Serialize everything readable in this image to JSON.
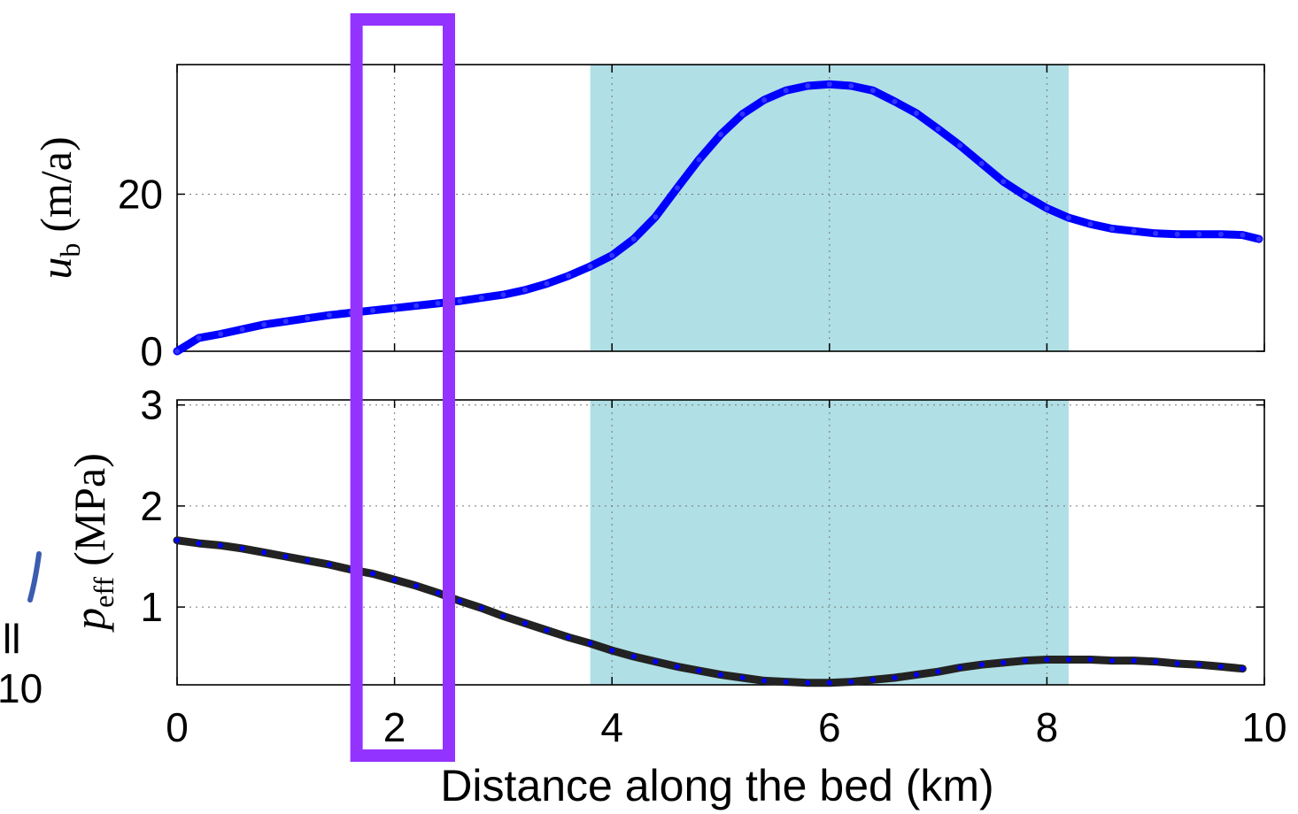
{
  "chart_data": [
    {
      "type": "line",
      "ylabel": {
        "symbol": "u",
        "subscript": "b",
        "unit": "(m/a)"
      },
      "xlim": [
        0,
        10
      ],
      "ylim": [
        0,
        36.5
      ],
      "yticks": [
        "0",
        "20"
      ],
      "yticks_values": [
        0,
        20
      ],
      "xticks_values": [
        0,
        2,
        4,
        6,
        8,
        10
      ],
      "grid": true,
      "shaded_region": {
        "x": [
          3.8,
          8.2
        ],
        "color": "#b0dfe5"
      },
      "series": [
        {
          "color": "#0000ff",
          "x": [
            0,
            0.2,
            0.4,
            0.6,
            0.8,
            1.0,
            1.2,
            1.4,
            1.6,
            1.8,
            2.0,
            2.2,
            2.4,
            2.6,
            2.8,
            3.0,
            3.2,
            3.4,
            3.6,
            3.8,
            4.0,
            4.2,
            4.4,
            4.6,
            4.8,
            5.0,
            5.2,
            5.4,
            5.6,
            5.8,
            6.0,
            6.2,
            6.4,
            6.6,
            6.8,
            7.0,
            7.2,
            7.4,
            7.6,
            7.8,
            8.0,
            8.2,
            8.4,
            8.6,
            8.8,
            9.0,
            9.2,
            9.4,
            9.6,
            9.8,
            9.95
          ],
          "values": [
            0,
            1.7,
            2.2,
            2.8,
            3.4,
            3.8,
            4.2,
            4.6,
            4.9,
            5.2,
            5.5,
            5.8,
            6.1,
            6.4,
            6.8,
            7.2,
            7.8,
            8.6,
            9.6,
            10.8,
            12.2,
            14.3,
            17.1,
            20.8,
            24.4,
            27.6,
            30.2,
            32.0,
            33.2,
            33.8,
            34.0,
            33.8,
            33.2,
            31.8,
            30.3,
            28.3,
            26.2,
            23.9,
            21.6,
            19.8,
            18.2,
            17.0,
            16.2,
            15.6,
            15.3,
            15.0,
            14.9,
            14.9,
            14.9,
            14.8,
            14.3
          ]
        }
      ]
    },
    {
      "type": "line",
      "ylabel": {
        "symbol": "p",
        "subscript": "eff",
        "unit": "(MPa)"
      },
      "xlabel": "Distance along the bed (km)",
      "xlim": [
        0,
        10
      ],
      "ylim": [
        0.23,
        3.05
      ],
      "yticks": [
        "1",
        "2",
        "3"
      ],
      "yticks_values": [
        1,
        2,
        3
      ],
      "xticks": [
        "0",
        "2",
        "4",
        "6",
        "8",
        "10"
      ],
      "xticks_values": [
        0,
        2,
        4,
        6,
        8,
        10
      ],
      "grid": true,
      "shaded_region": {
        "x": [
          3.8,
          8.2
        ],
        "color": "#b0dfe5"
      },
      "series": [
        {
          "color": "#222222",
          "marker_color": "#0000ff",
          "x": [
            0,
            0.2,
            0.4,
            0.6,
            0.8,
            1.0,
            1.2,
            1.4,
            1.6,
            1.8,
            2.0,
            2.2,
            2.4,
            2.6,
            2.8,
            3.0,
            3.2,
            3.4,
            3.6,
            3.8,
            4.0,
            4.2,
            4.4,
            4.6,
            4.8,
            5.0,
            5.2,
            5.4,
            5.6,
            5.8,
            6.0,
            6.2,
            6.4,
            6.6,
            6.8,
            7.0,
            7.2,
            7.4,
            7.6,
            7.8,
            8.0,
            8.2,
            8.4,
            8.6,
            8.8,
            9.0,
            9.2,
            9.4,
            9.6,
            9.8
          ],
          "values": [
            1.66,
            1.63,
            1.61,
            1.58,
            1.54,
            1.5,
            1.46,
            1.42,
            1.37,
            1.33,
            1.27,
            1.21,
            1.14,
            1.06,
            0.99,
            0.91,
            0.84,
            0.77,
            0.7,
            0.64,
            0.57,
            0.51,
            0.46,
            0.41,
            0.37,
            0.33,
            0.3,
            0.27,
            0.26,
            0.25,
            0.25,
            0.26,
            0.28,
            0.3,
            0.33,
            0.36,
            0.4,
            0.43,
            0.45,
            0.47,
            0.48,
            0.48,
            0.48,
            0.47,
            0.47,
            0.46,
            0.44,
            0.43,
            0.41,
            0.39
          ]
        }
      ]
    }
  ],
  "highlight_box": {
    "x_range": [
      1.65,
      2.5
    ],
    "color": "#9333ff"
  },
  "edge_fragments": {
    "label": "10",
    "partial_glyph": "ll",
    "stroke_color": "#3b5cb0"
  }
}
